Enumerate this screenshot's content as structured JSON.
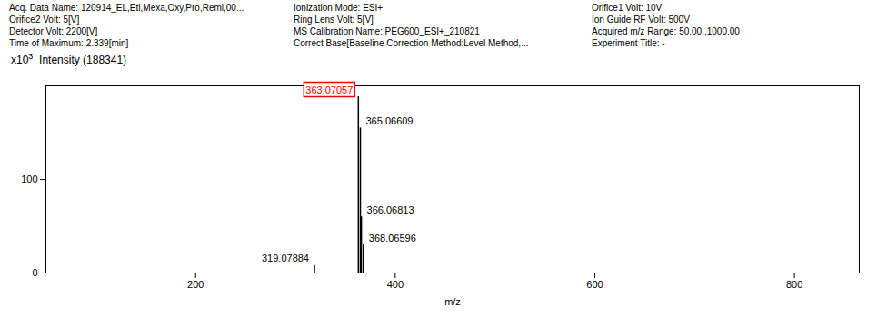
{
  "chart_data": {
    "type": "spectrum",
    "header_lines": [
      [
        "Acq. Data Name: 120914_EL,Eti,Mexa,Oxy,Pro,Remi,00...",
        "Ionization Mode: ESI+",
        "Orifice1 Volt: 10V"
      ],
      [
        "Orifice2 Volt: 5[V]",
        "Ring Lens Volt: 5[V]",
        "Ion Guide RF Volt: 500V"
      ],
      [
        "Detector Volt: 2200[V]",
        "MS Calibration Name: PEG600_ESI+_210821",
        "Acquired m/z Range: 50.00..1000.00"
      ],
      [
        "Time of Maximum: 2.339[min]",
        "Correct Base[Baseline Correction Method:Level Method,...",
        "Experiment Title: -"
      ]
    ],
    "ylabel_prefix": "x10",
    "ylabel_exp": "3",
    "ylabel": "Intensity (188341)",
    "xlabel": "m/z",
    "x": [
      363.07057,
      365.06609,
      366.06813,
      368.06596,
      319.07884
    ],
    "values": [
      188.341,
      155,
      60,
      30,
      8
    ],
    "color": "#000000",
    "annotations": [
      {
        "text": "363.07057",
        "color": "red"
      },
      {
        "text": "365.06609"
      },
      {
        "text": "366.06813"
      },
      {
        "text": "368.06596"
      },
      {
        "text": "319.07884"
      }
    ],
    "xlim": [
      50,
      865
    ],
    "ylim": [
      0,
      200
    ],
    "xticks": [
      200,
      400,
      600,
      800
    ],
    "yticks": [
      0,
      100
    ],
    "grid": false
  }
}
